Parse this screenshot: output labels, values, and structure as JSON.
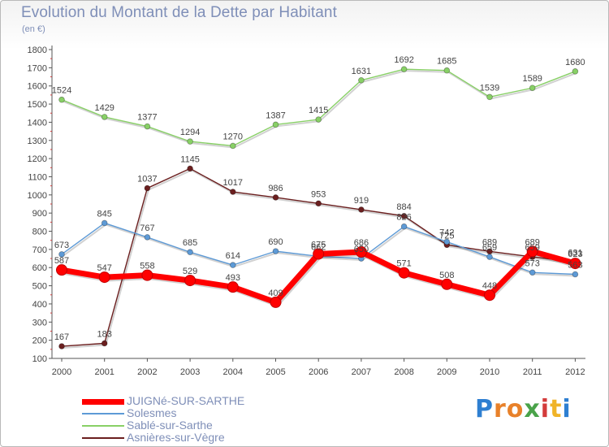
{
  "title": "Evolution du Montant de la Dette par Habitant",
  "subtitle": "(en €)",
  "brand": {
    "text": "Proxiti",
    "letter_colors": [
      "#2e7fd1",
      "#e8812a",
      "#e8812a",
      "#4aa34a",
      "#d33b3b",
      "#f0b428",
      "#2e7fd1"
    ]
  },
  "chart_data": {
    "type": "line",
    "title": "Evolution du Montant de la Dette par Habitant",
    "subtitle": "(en €)",
    "x": [
      "2000",
      "2001",
      "2002",
      "2003",
      "2004",
      "2005",
      "2006",
      "2007",
      "2008",
      "2009",
      "2010",
      "2011",
      "2012"
    ],
    "ylim": [
      100,
      1800
    ],
    "yticks": [
      100,
      200,
      300,
      400,
      500,
      600,
      700,
      800,
      900,
      1000,
      1100,
      1200,
      1300,
      1400,
      1500,
      1600,
      1700,
      1800
    ],
    "grid": false,
    "legend_position": "bottom-left",
    "series": [
      {
        "name": "Asnières-sur-Vègre",
        "color": "#6b1f1f",
        "values": [
          167,
          183,
          1037,
          1145,
          1017,
          986,
          953,
          919,
          884,
          725,
          689,
          659,
          631
        ]
      },
      {
        "name": "Sablé-sur-Sarthe",
        "color": "#88d066",
        "values": [
          1524,
          1429,
          1377,
          1294,
          1270,
          1387,
          1415,
          1631,
          1692,
          1685,
          1539,
          1589,
          1680
        ]
      },
      {
        "name": "Solesmes",
        "color": "#5d9ad6",
        "values": [
          673,
          845,
          767,
          685,
          614,
          690,
          662,
          650,
          826,
          742,
          659,
          573,
          563
        ]
      },
      {
        "name": "JUIGNé-SUR-SARTHE",
        "color": "#ff0000",
        "values": [
          587,
          547,
          558,
          529,
          493,
          409,
          675,
          686,
          571,
          508,
          448,
          689,
          623
        ]
      }
    ]
  },
  "legend": [
    {
      "label": "JUIGNé-SUR-SARTHE",
      "color": "#ff0000",
      "thickness": 7
    },
    {
      "label": "Solesmes",
      "color": "#5d9ad6",
      "thickness": 2
    },
    {
      "label": "Sablé-sur-Sarthe",
      "color": "#88d066",
      "thickness": 2
    },
    {
      "label": "Asnières-sur-Vègre",
      "color": "#6b1f1f",
      "thickness": 2
    }
  ]
}
